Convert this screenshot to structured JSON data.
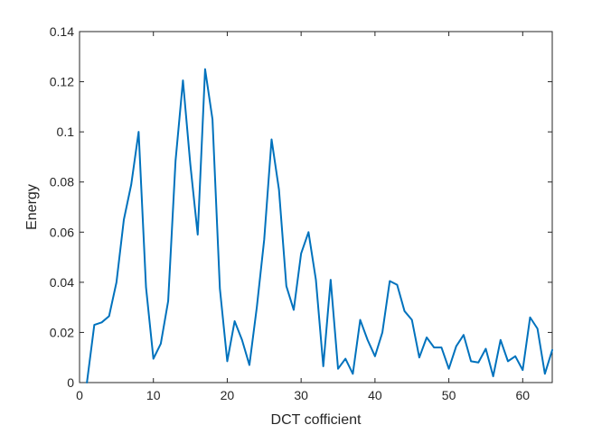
{
  "chart_data": {
    "type": "line",
    "title": "",
    "xlabel": "DCT cofficient",
    "ylabel": "Energy",
    "xlim": [
      0,
      64
    ],
    "ylim": [
      0,
      0.14
    ],
    "xticks": [
      0,
      10,
      20,
      30,
      40,
      50,
      60
    ],
    "yticks": [
      0,
      0.02,
      0.04,
      0.06,
      0.08,
      0.1,
      0.12,
      0.14
    ],
    "xtick_labels": [
      "0",
      "10",
      "20",
      "30",
      "40",
      "50",
      "60"
    ],
    "ytick_labels": [
      "0",
      "0.02",
      "0.04",
      "0.06",
      "0.08",
      "0.1",
      "0.12",
      "0.14"
    ],
    "grid": false,
    "box": true,
    "colors": {
      "line": "#0072bd",
      "axis": "#262626",
      "background": "#ffffff"
    },
    "series": [
      {
        "x": [
          1,
          2,
          3,
          4,
          5,
          6,
          7,
          8,
          9,
          10,
          11,
          12,
          13,
          14,
          15,
          16,
          17,
          18,
          19,
          20,
          21,
          22,
          23,
          24,
          25,
          26,
          27,
          28,
          29,
          30,
          31,
          32,
          33,
          34,
          35,
          36,
          37,
          38,
          39,
          40,
          41,
          42,
          43,
          44,
          45,
          46,
          47,
          48,
          49,
          50,
          51,
          52,
          53,
          54,
          55,
          56,
          57,
          58,
          59,
          60,
          61,
          62,
          63,
          64
        ],
        "values": [
          0.0,
          0.023,
          0.024,
          0.0265,
          0.04,
          0.065,
          0.079,
          0.1,
          0.038,
          0.0095,
          0.0155,
          0.0325,
          0.0885,
          0.1205,
          0.087,
          0.059,
          0.125,
          0.105,
          0.0375,
          0.0085,
          0.0245,
          0.017,
          0.007,
          0.03,
          0.057,
          0.097,
          0.077,
          0.0385,
          0.029,
          0.0515,
          0.06,
          0.041,
          0.0065,
          0.041,
          0.0055,
          0.0095,
          0.0035,
          0.025,
          0.017,
          0.0105,
          0.02,
          0.0405,
          0.039,
          0.0285,
          0.025,
          0.01,
          0.018,
          0.014,
          0.014,
          0.0055,
          0.0145,
          0.019,
          0.0085,
          0.008,
          0.0135,
          0.0025,
          0.017,
          0.0085,
          0.0105,
          0.005,
          0.026,
          0.0215,
          0.0035,
          0.013
        ]
      }
    ]
  }
}
